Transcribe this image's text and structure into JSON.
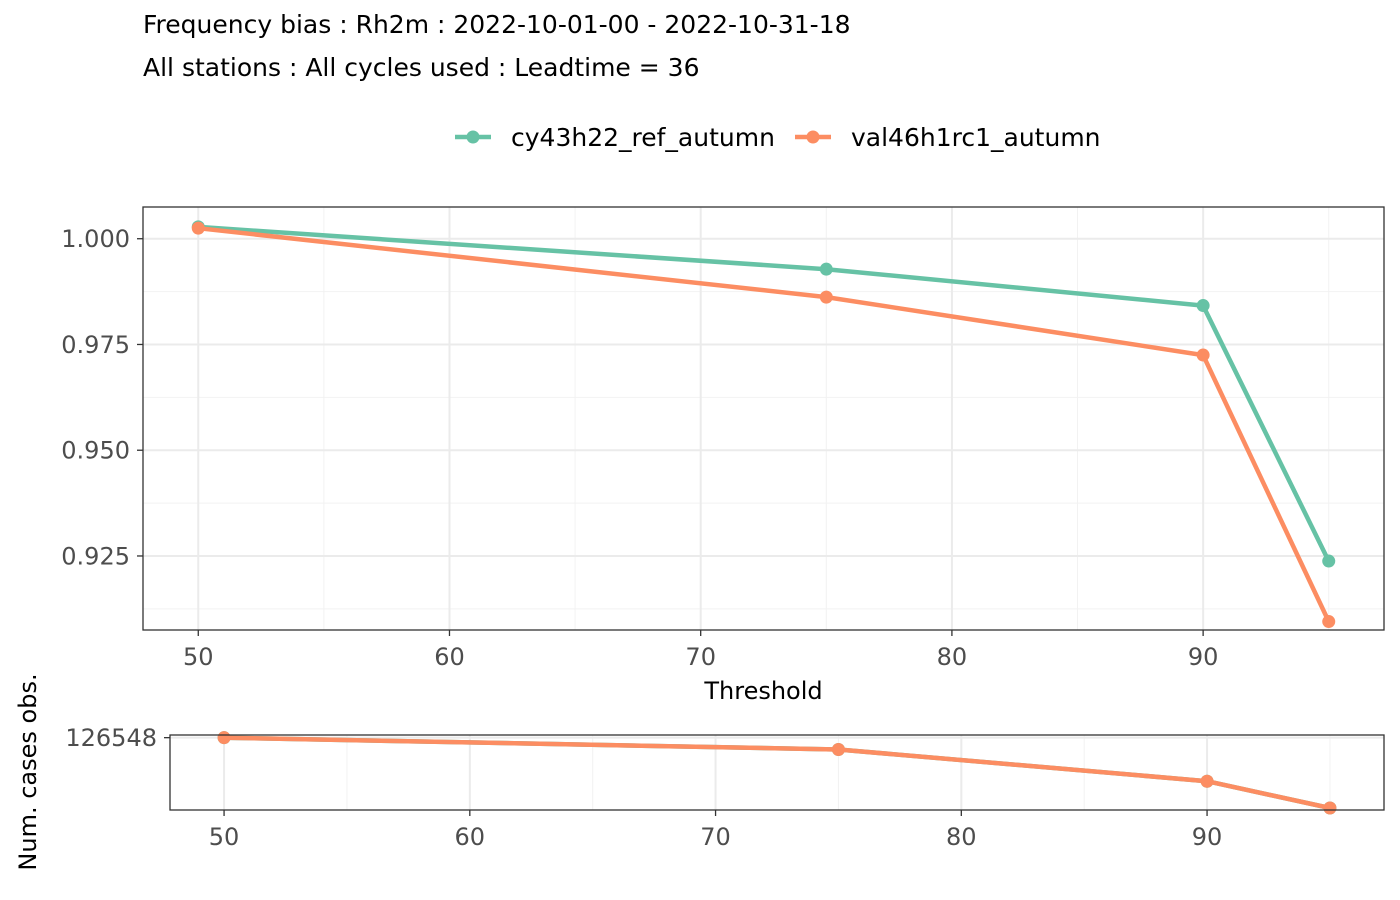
{
  "title": "Frequency bias : Rh2m : 2022-10-01-00 - 2022-10-31-18",
  "subtitle": "All stations : All cycles used : Leadtime = 36",
  "chart_data": [
    {
      "type": "line",
      "xlabel": "Threshold",
      "ylabel": "",
      "x": [
        50,
        75,
        90,
        95
      ],
      "xlim": [
        47.8,
        97.2
      ],
      "ylim": [
        0.9075,
        1.0075
      ],
      "xticks": [
        50,
        60,
        70,
        80,
        90
      ],
      "yticks": [
        0.925,
        0.95,
        0.975,
        1.0
      ],
      "ytick_labels": [
        "0.925",
        "0.950",
        "0.975",
        "1.000"
      ],
      "grid": true,
      "legend_position": "top",
      "series": [
        {
          "name": "cy43h22_ref_autumn",
          "color": "#66c2a5",
          "values": [
            1.0028,
            0.9928,
            0.9842,
            0.9238
          ]
        },
        {
          "name": "val46h1rc1_autumn",
          "color": "#fc8d62",
          "values": [
            1.0025,
            0.9862,
            0.9725,
            0.9095
          ]
        }
      ]
    },
    {
      "type": "line",
      "xlabel": "",
      "ylabel": "Num. cases obs.",
      "x": [
        50,
        75,
        90,
        95
      ],
      "xlim": [
        47.8,
        97.2
      ],
      "ylim": [
        122150,
        126710
      ],
      "xticks": [
        50,
        60,
        70,
        80,
        90
      ],
      "yticks": [
        126548
      ],
      "ytick_labels": [
        "126548"
      ],
      "grid": true,
      "series": [
        {
          "color": "#66c2a5",
          "values": [
            126548,
            125830,
            123900,
            122270
          ]
        },
        {
          "color": "#fc8d62",
          "values": [
            126548,
            125830,
            123900,
            122270
          ]
        }
      ]
    }
  ]
}
